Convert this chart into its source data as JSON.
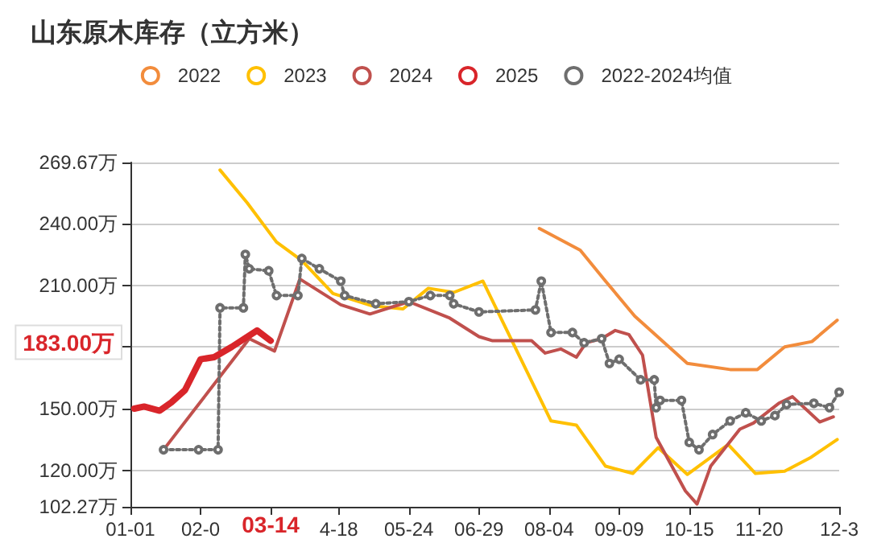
{
  "chart_data": {
    "type": "line",
    "title": "山东原木库存（立方米）",
    "xlim": [
      "--01-01",
      "--12-31"
    ],
    "xticks": [
      {
        "value": "--01-01",
        "label": "01-01"
      },
      {
        "value": "--02-06",
        "label": "02-0"
      },
      {
        "value": "--03-14",
        "label": null
      },
      {
        "value": "--04-18",
        "label": "4-18"
      },
      {
        "value": "--05-24",
        "label": "05-24"
      },
      {
        "value": "--06-29",
        "label": "06-29"
      },
      {
        "value": "--08-04",
        "label": "08-04"
      },
      {
        "value": "--09-09",
        "label": "09-09"
      },
      {
        "value": "--10-15",
        "label": "10-15"
      },
      {
        "value": "--11-20",
        "label": "11-20"
      },
      {
        "value": "--12-31",
        "label": "12-3"
      }
    ],
    "ylim": [
      102.27,
      269.67
    ],
    "yticks": [
      {
        "value": 102.27,
        "label": "102.27万"
      },
      {
        "value": 120,
        "label": "120.00万"
      },
      {
        "value": 150,
        "label": "150.00万"
      },
      {
        "value": 180,
        "label": null
      },
      {
        "value": 210,
        "label": "210.00万"
      },
      {
        "value": 240,
        "label": "240.00万"
      },
      {
        "value": 269.67,
        "label": "269.67万"
      }
    ],
    "grid": "y",
    "legend": "top",
    "line_style": "solid",
    "marker": "none",
    "annotations": [
      "183.00万",
      "03-14"
    ],
    "series": [
      {
        "name": "2022",
        "color": "#f28c3c",
        "x": [
          "--07-30",
          "--08-20",
          "--09-02",
          "--09-17",
          "--10-14",
          "--11-05",
          "--11-19",
          "--12-03",
          "--12-17",
          "--12-30"
        ],
        "values": [
          237.6,
          227,
          212,
          195,
          172,
          169,
          169,
          180,
          182.6,
          193
        ]
      },
      {
        "name": "2023",
        "color": "#ffc000",
        "x": [
          "--02-16",
          "--03-02",
          "--03-17",
          "--03-30",
          "--04-15",
          "--05-05",
          "--05-21",
          "--06-03",
          "--06-16",
          "--07-01",
          "--08-05",
          "--08-18",
          "--09-02",
          "--09-16",
          "--09-29",
          "--10-14",
          "--11-04",
          "--11-18",
          "--12-03",
          "--12-16",
          "--12-30"
        ],
        "values": [
          266,
          250,
          231,
          222,
          206,
          200,
          198.5,
          208.5,
          206.5,
          212,
          144,
          142,
          122,
          118.5,
          131,
          118,
          132.5,
          118.5,
          119.6,
          126,
          135
        ]
      },
      {
        "name": "2024",
        "color": "#c0504d",
        "x": [
          "--01-18",
          "--03-03",
          "--03-16",
          "--03-29",
          "--04-19",
          "--05-04",
          "--05-24",
          "--06-14",
          "--06-29",
          "--07-06",
          "--07-26",
          "--08-02",
          "--08-10",
          "--08-18",
          "--08-23",
          "--08-31",
          "--09-07",
          "--09-14",
          "--09-21",
          "--09-28",
          "--10-13",
          "--10-19",
          "--10-26",
          "--11-10",
          "--11-17",
          "--11-30",
          "--12-07",
          "--12-21",
          "--12-28"
        ],
        "values": [
          130,
          184,
          178,
          213,
          200.5,
          196,
          202,
          194,
          185,
          183,
          183,
          177,
          179,
          175,
          182,
          184,
          188,
          186,
          176,
          136,
          110,
          103.6,
          122,
          140,
          143,
          152.6,
          155.8,
          143.5,
          146
        ]
      },
      {
        "name": "2025",
        "color": "#d9252a",
        "x": [
          "--01-03",
          "--01-08",
          "--01-16",
          "--01-22",
          "--01-29",
          "--02-06",
          "--02-13",
          "--02-22",
          "--03-07",
          "--03-14"
        ],
        "values": [
          150,
          151,
          149,
          153,
          159,
          174,
          175,
          180,
          188,
          183
        ]
      },
      {
        "name": "2022-2024均值",
        "color": "#6e6e6e",
        "line_style": "dotted",
        "marker": "circle",
        "x": [
          "--01-18",
          "--02-05",
          "--02-15",
          "--02-16",
          "--02-28",
          "--03-01",
          "--03-03",
          "--03-13",
          "--03-17",
          "--03-28",
          "--03-30",
          "--04-08",
          "--04-19",
          "--04-21",
          "--05-07",
          "--05-24",
          "--06-04",
          "--06-14",
          "--06-16",
          "--06-29",
          "--07-28",
          "--07-31",
          "--08-05",
          "--08-16",
          "--08-22",
          "--08-31",
          "--09-04",
          "--09-09",
          "--09-20",
          "--09-27",
          "--09-28",
          "--09-30",
          "--10-11",
          "--10-15",
          "--10-20",
          "--10-27",
          "--11-05",
          "--11-13",
          "--11-21",
          "--11-28",
          "--12-04",
          "--12-18",
          "--12-26",
          "--12-31"
        ],
        "values": [
          130,
          130,
          130,
          199,
          199,
          225,
          218,
          217,
          205,
          205,
          223,
          218,
          212,
          205,
          201,
          202,
          205,
          205,
          201,
          197,
          198,
          212,
          187,
          187,
          182,
          184,
          172,
          174,
          164,
          164,
          150.5,
          154,
          154,
          133.6,
          130,
          137.4,
          144,
          148,
          144,
          146.6,
          152,
          152.6,
          150.5,
          158
        ]
      }
    ]
  }
}
